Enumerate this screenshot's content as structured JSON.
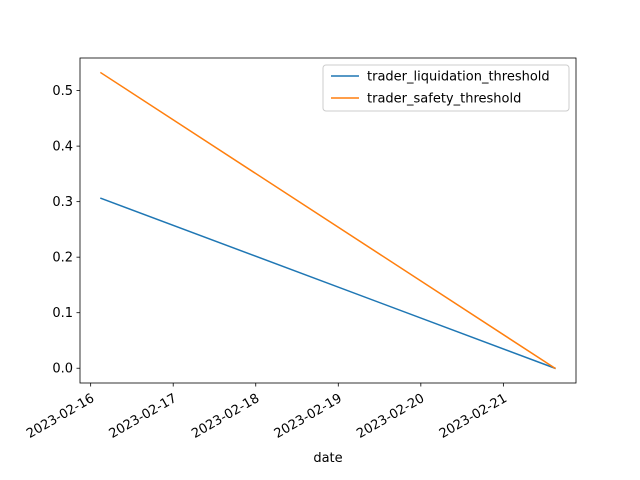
{
  "chart_data": {
    "type": "line",
    "xlabel": "date",
    "ylabel": "",
    "title": "",
    "x_type": "date",
    "xlim": [
      "2023-02-15T20:54:00",
      "2023-02-21T21:07:00"
    ],
    "ylim": [
      -0.0266,
      0.5587
    ],
    "x_ticks": [
      "2023-02-16",
      "2023-02-17",
      "2023-02-18",
      "2023-02-19",
      "2023-02-20",
      "2023-02-21"
    ],
    "y_ticks": [
      0.0,
      0.1,
      0.2,
      0.3,
      0.4,
      0.5
    ],
    "y_tick_labels": [
      "0.0",
      "0.1",
      "0.2",
      "0.3",
      "0.4",
      "0.5"
    ],
    "series": [
      {
        "name": "trader_liquidation_threshold",
        "color": "#1f77b4",
        "points": [
          {
            "x": "2023-02-16T03:00:00",
            "y": 0.306
          },
          {
            "x": "2023-02-21T15:00:00",
            "y": 0.0
          }
        ]
      },
      {
        "name": "trader_safety_threshold",
        "color": "#ff7f0e",
        "points": [
          {
            "x": "2023-02-16T03:00:00",
            "y": 0.532
          },
          {
            "x": "2023-02-21T15:00:00",
            "y": 0.0
          }
        ]
      }
    ],
    "legend_position": "upper right",
    "grid": false
  }
}
